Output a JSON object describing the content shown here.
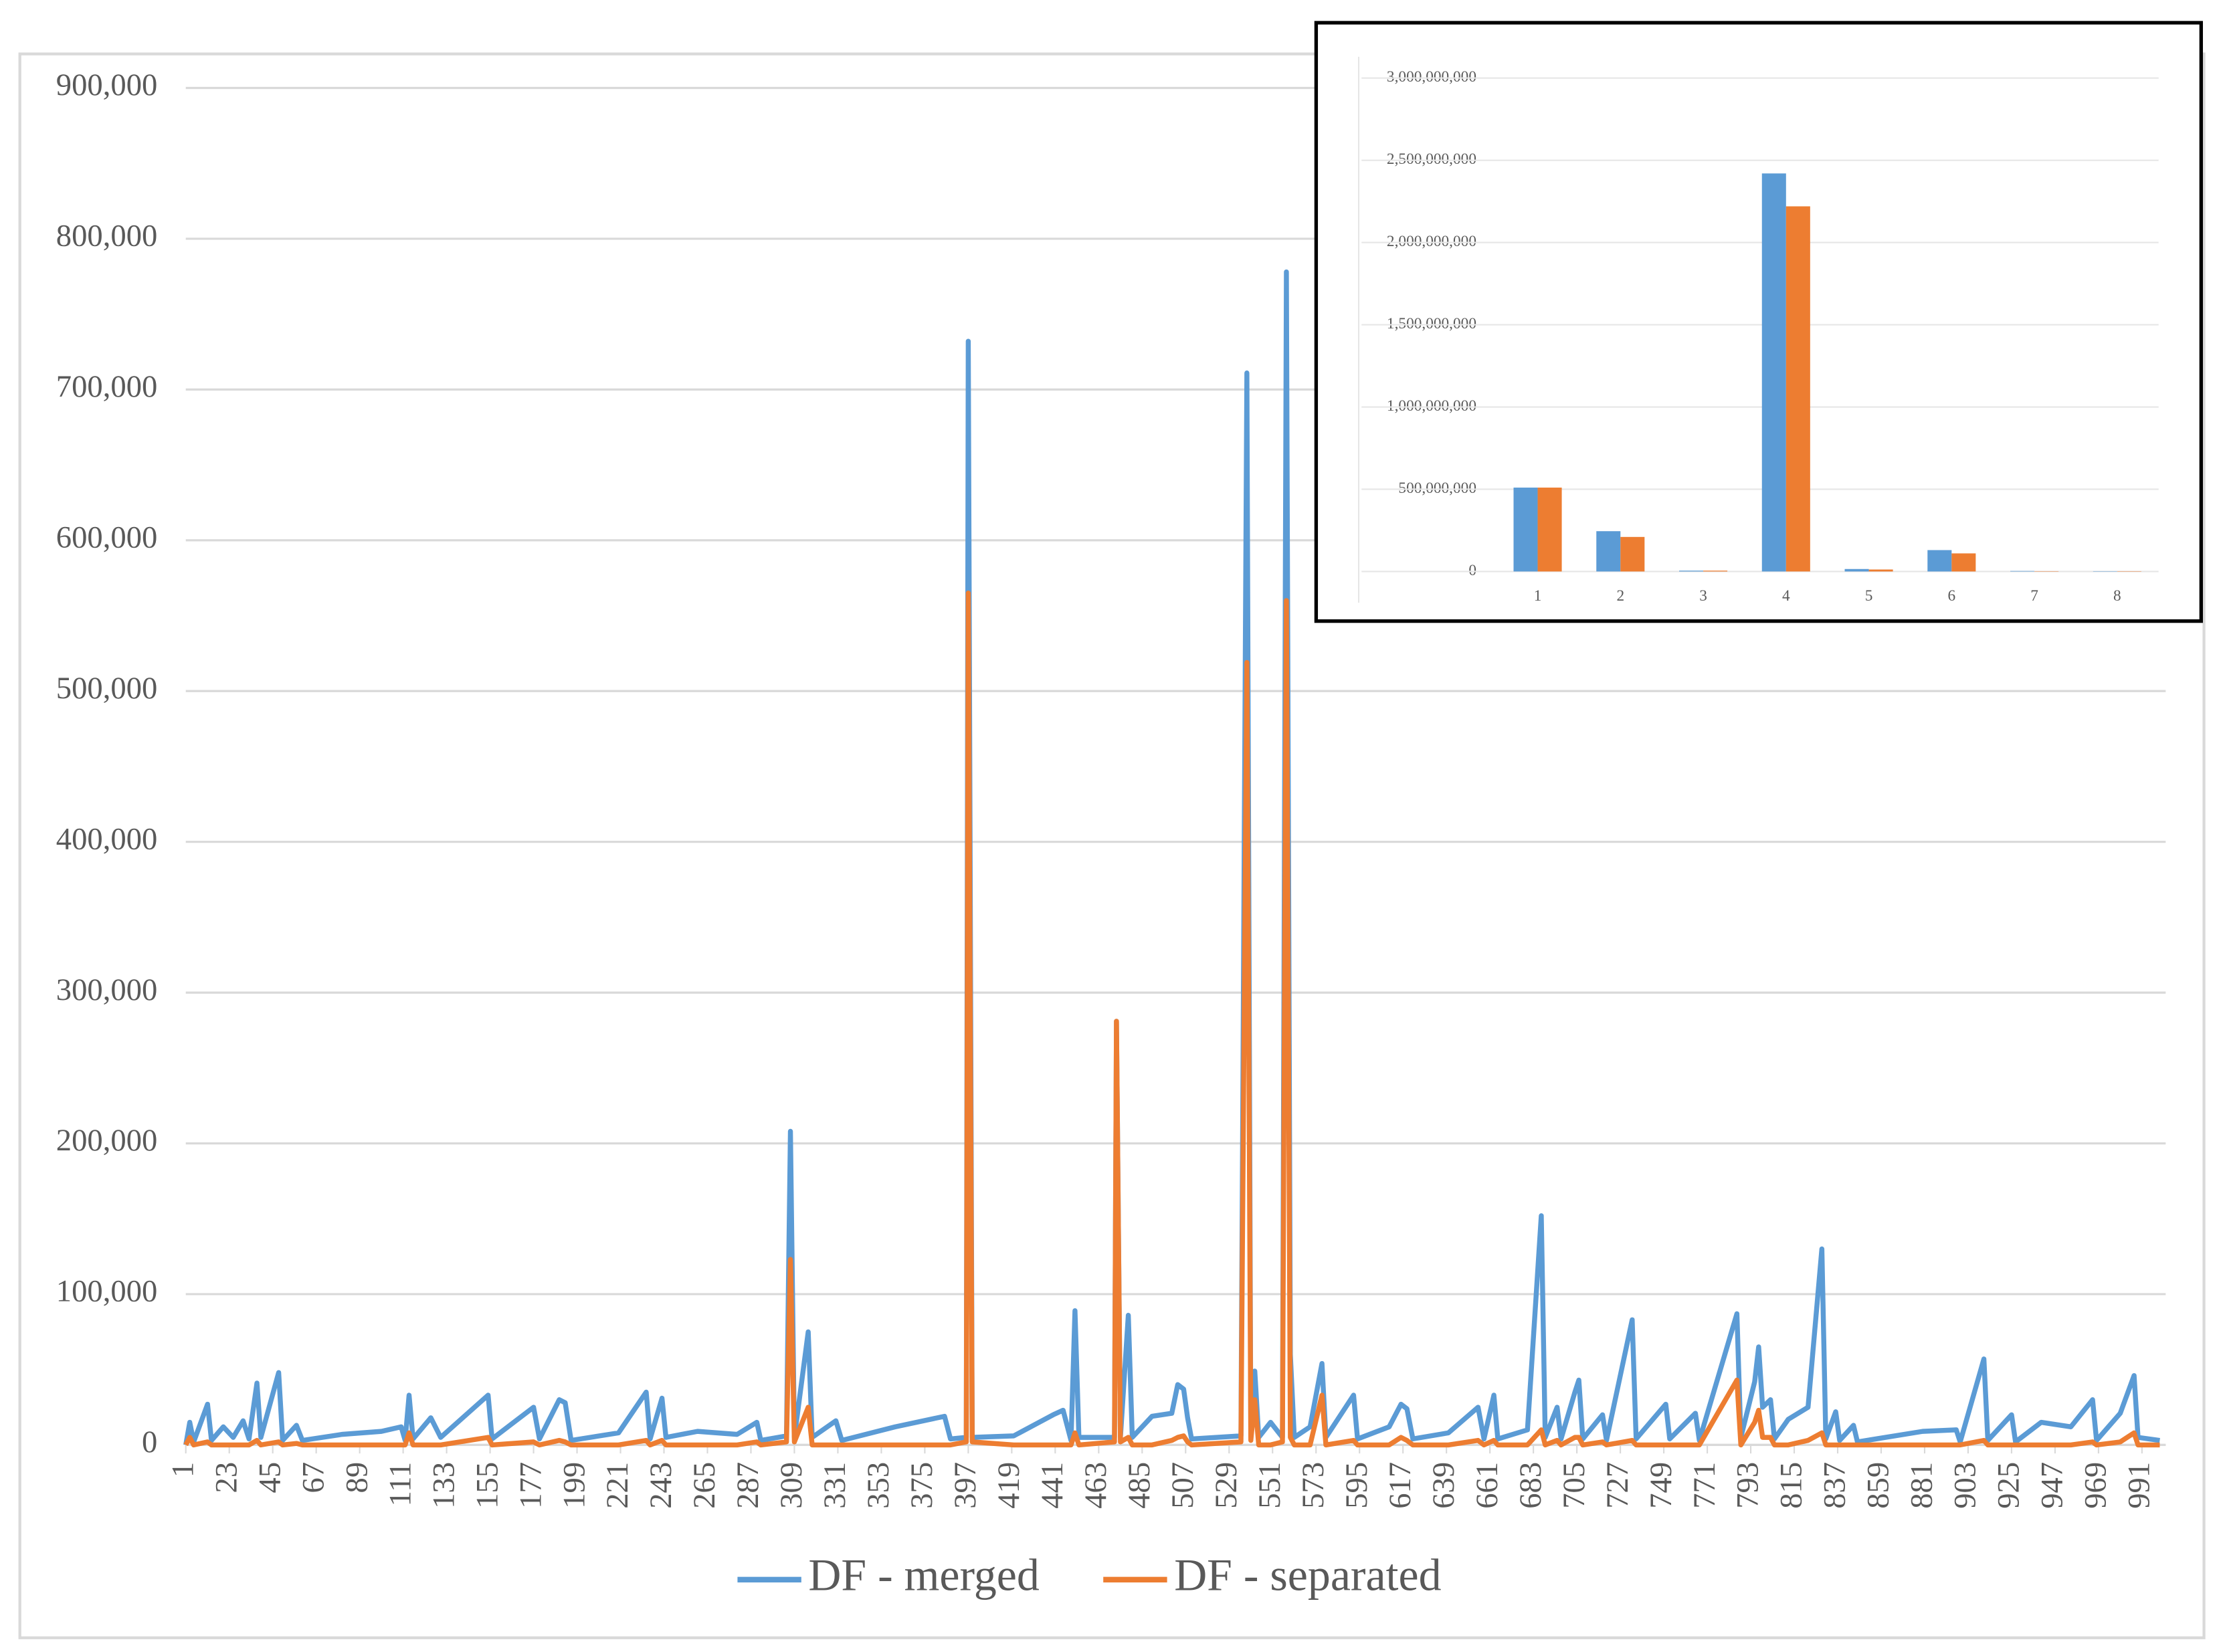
{
  "chart_data": [
    {
      "type": "line",
      "x": [
        1,
        3,
        5,
        12,
        14,
        20,
        25,
        30,
        33,
        37,
        39,
        48,
        50,
        57,
        60,
        80,
        100,
        110,
        112,
        114,
        116,
        125,
        130,
        154,
        156,
        177,
        180,
        190,
        193,
        196,
        220,
        234,
        236,
        242,
        244,
        260,
        280,
        290,
        292,
        305,
        307,
        309,
        316,
        318,
        330,
        333,
        360,
        385,
        388,
        396,
        397,
        399,
        420,
        440,
        445,
        449,
        451,
        453,
        471,
        472,
        474,
        478,
        480,
        490,
        500,
        503,
        506,
        508,
        510,
        535,
        538,
        540,
        542,
        544,
        550,
        556,
        558,
        560,
        562,
        570,
        576,
        578,
        592,
        594,
        610,
        616,
        619,
        622,
        640,
        655,
        658,
        663,
        665,
        680,
        687,
        689,
        695,
        697,
        704,
        706,
        708,
        718,
        720,
        733,
        735,
        750,
        752,
        765,
        767,
        786,
        788,
        795,
        797,
        799,
        803,
        805,
        812,
        822,
        829,
        831,
        836,
        838,
        845,
        847,
        880,
        897,
        899,
        911,
        913,
        925,
        927,
        940,
        955,
        966,
        968,
        980,
        987,
        989,
        1000
      ],
      "series": [
        {
          "name": "DF - merged",
          "color": "#5b9bd5",
          "values": [
            0,
            15000,
            2000,
            27000,
            3000,
            12000,
            5000,
            16000,
            4000,
            41000,
            5000,
            48000,
            3000,
            13000,
            3000,
            7000,
            9000,
            12000,
            3000,
            33000,
            4000,
            18000,
            5000,
            33000,
            4000,
            25000,
            4000,
            30000,
            28000,
            3000,
            8000,
            35000,
            4000,
            31000,
            5000,
            9000,
            7000,
            15000,
            3000,
            6000,
            208000,
            5000,
            75000,
            5000,
            16000,
            3000,
            12000,
            19000,
            4000,
            5000,
            732000,
            5000,
            6000,
            20000,
            23000,
            3000,
            89000,
            5000,
            5000,
            281000,
            5000,
            86000,
            5000,
            19000,
            21000,
            40000,
            37000,
            18000,
            4000,
            6000,
            711000,
            6000,
            49000,
            5000,
            15000,
            5000,
            778000,
            60000,
            5000,
            12000,
            54000,
            5000,
            33000,
            4000,
            12000,
            27000,
            24000,
            4000,
            8000,
            25000,
            4000,
            33000,
            4000,
            10000,
            152000,
            5000,
            25000,
            4000,
            35000,
            43000,
            4000,
            20000,
            3000,
            83000,
            4000,
            27000,
            4000,
            21000,
            3000,
            87000,
            5000,
            42000,
            65000,
            25000,
            30000,
            4000,
            17000,
            25000,
            130000,
            4000,
            22000,
            3000,
            13000,
            2000,
            9000,
            10000,
            2000,
            57000,
            3000,
            20000,
            2000,
            15000,
            12000,
            30000,
            3000,
            21000,
            46000,
            5000,
            3000
          ]
        },
        {
          "name": "DF - separated",
          "color": "#ed7d31",
          "values": [
            0,
            5000,
            0,
            2000,
            0,
            0,
            0,
            0,
            0,
            3000,
            0,
            2000,
            0,
            1000,
            0,
            0,
            0,
            0,
            0,
            8000,
            0,
            0,
            0,
            5000,
            0,
            2000,
            0,
            3000,
            2000,
            0,
            0,
            3000,
            0,
            3000,
            0,
            0,
            0,
            2000,
            0,
            2000,
            123000,
            2000,
            25000,
            0,
            0,
            0,
            0,
            0,
            0,
            2000,
            565000,
            2000,
            0,
            0,
            0,
            0,
            8000,
            0,
            2000,
            281000,
            2000,
            5000,
            0,
            0,
            3000,
            5000,
            6000,
            2000,
            0,
            2000,
            519000,
            3000,
            30000,
            0,
            0,
            2000,
            560000,
            5000,
            0,
            0,
            33000,
            0,
            3000,
            0,
            0,
            5000,
            3000,
            0,
            0,
            3000,
            0,
            3000,
            0,
            0,
            10000,
            0,
            3000,
            0,
            5000,
            5000,
            0,
            2000,
            0,
            3000,
            0,
            0,
            0,
            0,
            0,
            43000,
            0,
            15000,
            23000,
            5000,
            5000,
            0,
            0,
            3000,
            8000,
            0,
            0,
            0,
            0,
            0,
            0,
            0,
            0,
            3000,
            0,
            0,
            0,
            0,
            0,
            2000,
            0,
            2000,
            8000,
            0,
            0
          ]
        }
      ],
      "xlim": [
        1,
        1003
      ],
      "xticks": [
        1,
        23,
        45,
        67,
        89,
        111,
        133,
        155,
        177,
        199,
        221,
        243,
        265,
        287,
        309,
        331,
        353,
        375,
        397,
        419,
        441,
        463,
        485,
        507,
        529,
        551,
        573,
        595,
        617,
        639,
        661,
        683,
        705,
        727,
        749,
        771,
        793,
        815,
        837,
        859,
        881,
        903,
        925,
        947,
        969,
        991
      ],
      "ylim": [
        0,
        900000
      ],
      "yticks": [
        0,
        {
          "value": 100000,
          "label": "100,000"
        },
        {
          "value": 200000,
          "label": "200,000"
        },
        {
          "value": 300000,
          "label": "300,000"
        },
        {
          "value": 400000,
          "label": "400,000"
        },
        {
          "value": 500000,
          "label": "500,000"
        },
        {
          "value": 600000,
          "label": "600,000"
        },
        {
          "value": 700000,
          "label": "700,000"
        },
        {
          "value": 800000,
          "label": "800,000"
        },
        {
          "value": 900000,
          "label": "900,000"
        }
      ],
      "grid": true,
      "legend": "bottom"
    },
    {
      "type": "bar",
      "categories": [
        "1",
        "2",
        "3",
        "4",
        "5",
        "6",
        "7",
        "8"
      ],
      "series": [
        {
          "color": "#5b9bd5",
          "values": [
            510000000,
            245000000,
            5000000,
            2420000000,
            15000000,
            130000000,
            3000000,
            2000000
          ]
        },
        {
          "color": "#ed7d31",
          "values": [
            510000000,
            210000000,
            5000000,
            2220000000,
            12000000,
            110000000,
            2000000,
            2000000
          ]
        }
      ],
      "ylim": [
        0,
        3000000000
      ],
      "yticks": [
        0,
        {
          "value": 500000000,
          "label": "500,000,000"
        },
        {
          "value": 1000000000,
          "label": "1,000,000,000"
        },
        {
          "value": 1500000000,
          "label": "1,500,000,000"
        },
        {
          "value": 2000000000,
          "label": "2,000,000,000"
        },
        {
          "value": 2500000000,
          "label": "2,500,000,000"
        },
        {
          "value": 3000000000,
          "label": "3,000,000,000"
        }
      ],
      "grid": true
    }
  ]
}
